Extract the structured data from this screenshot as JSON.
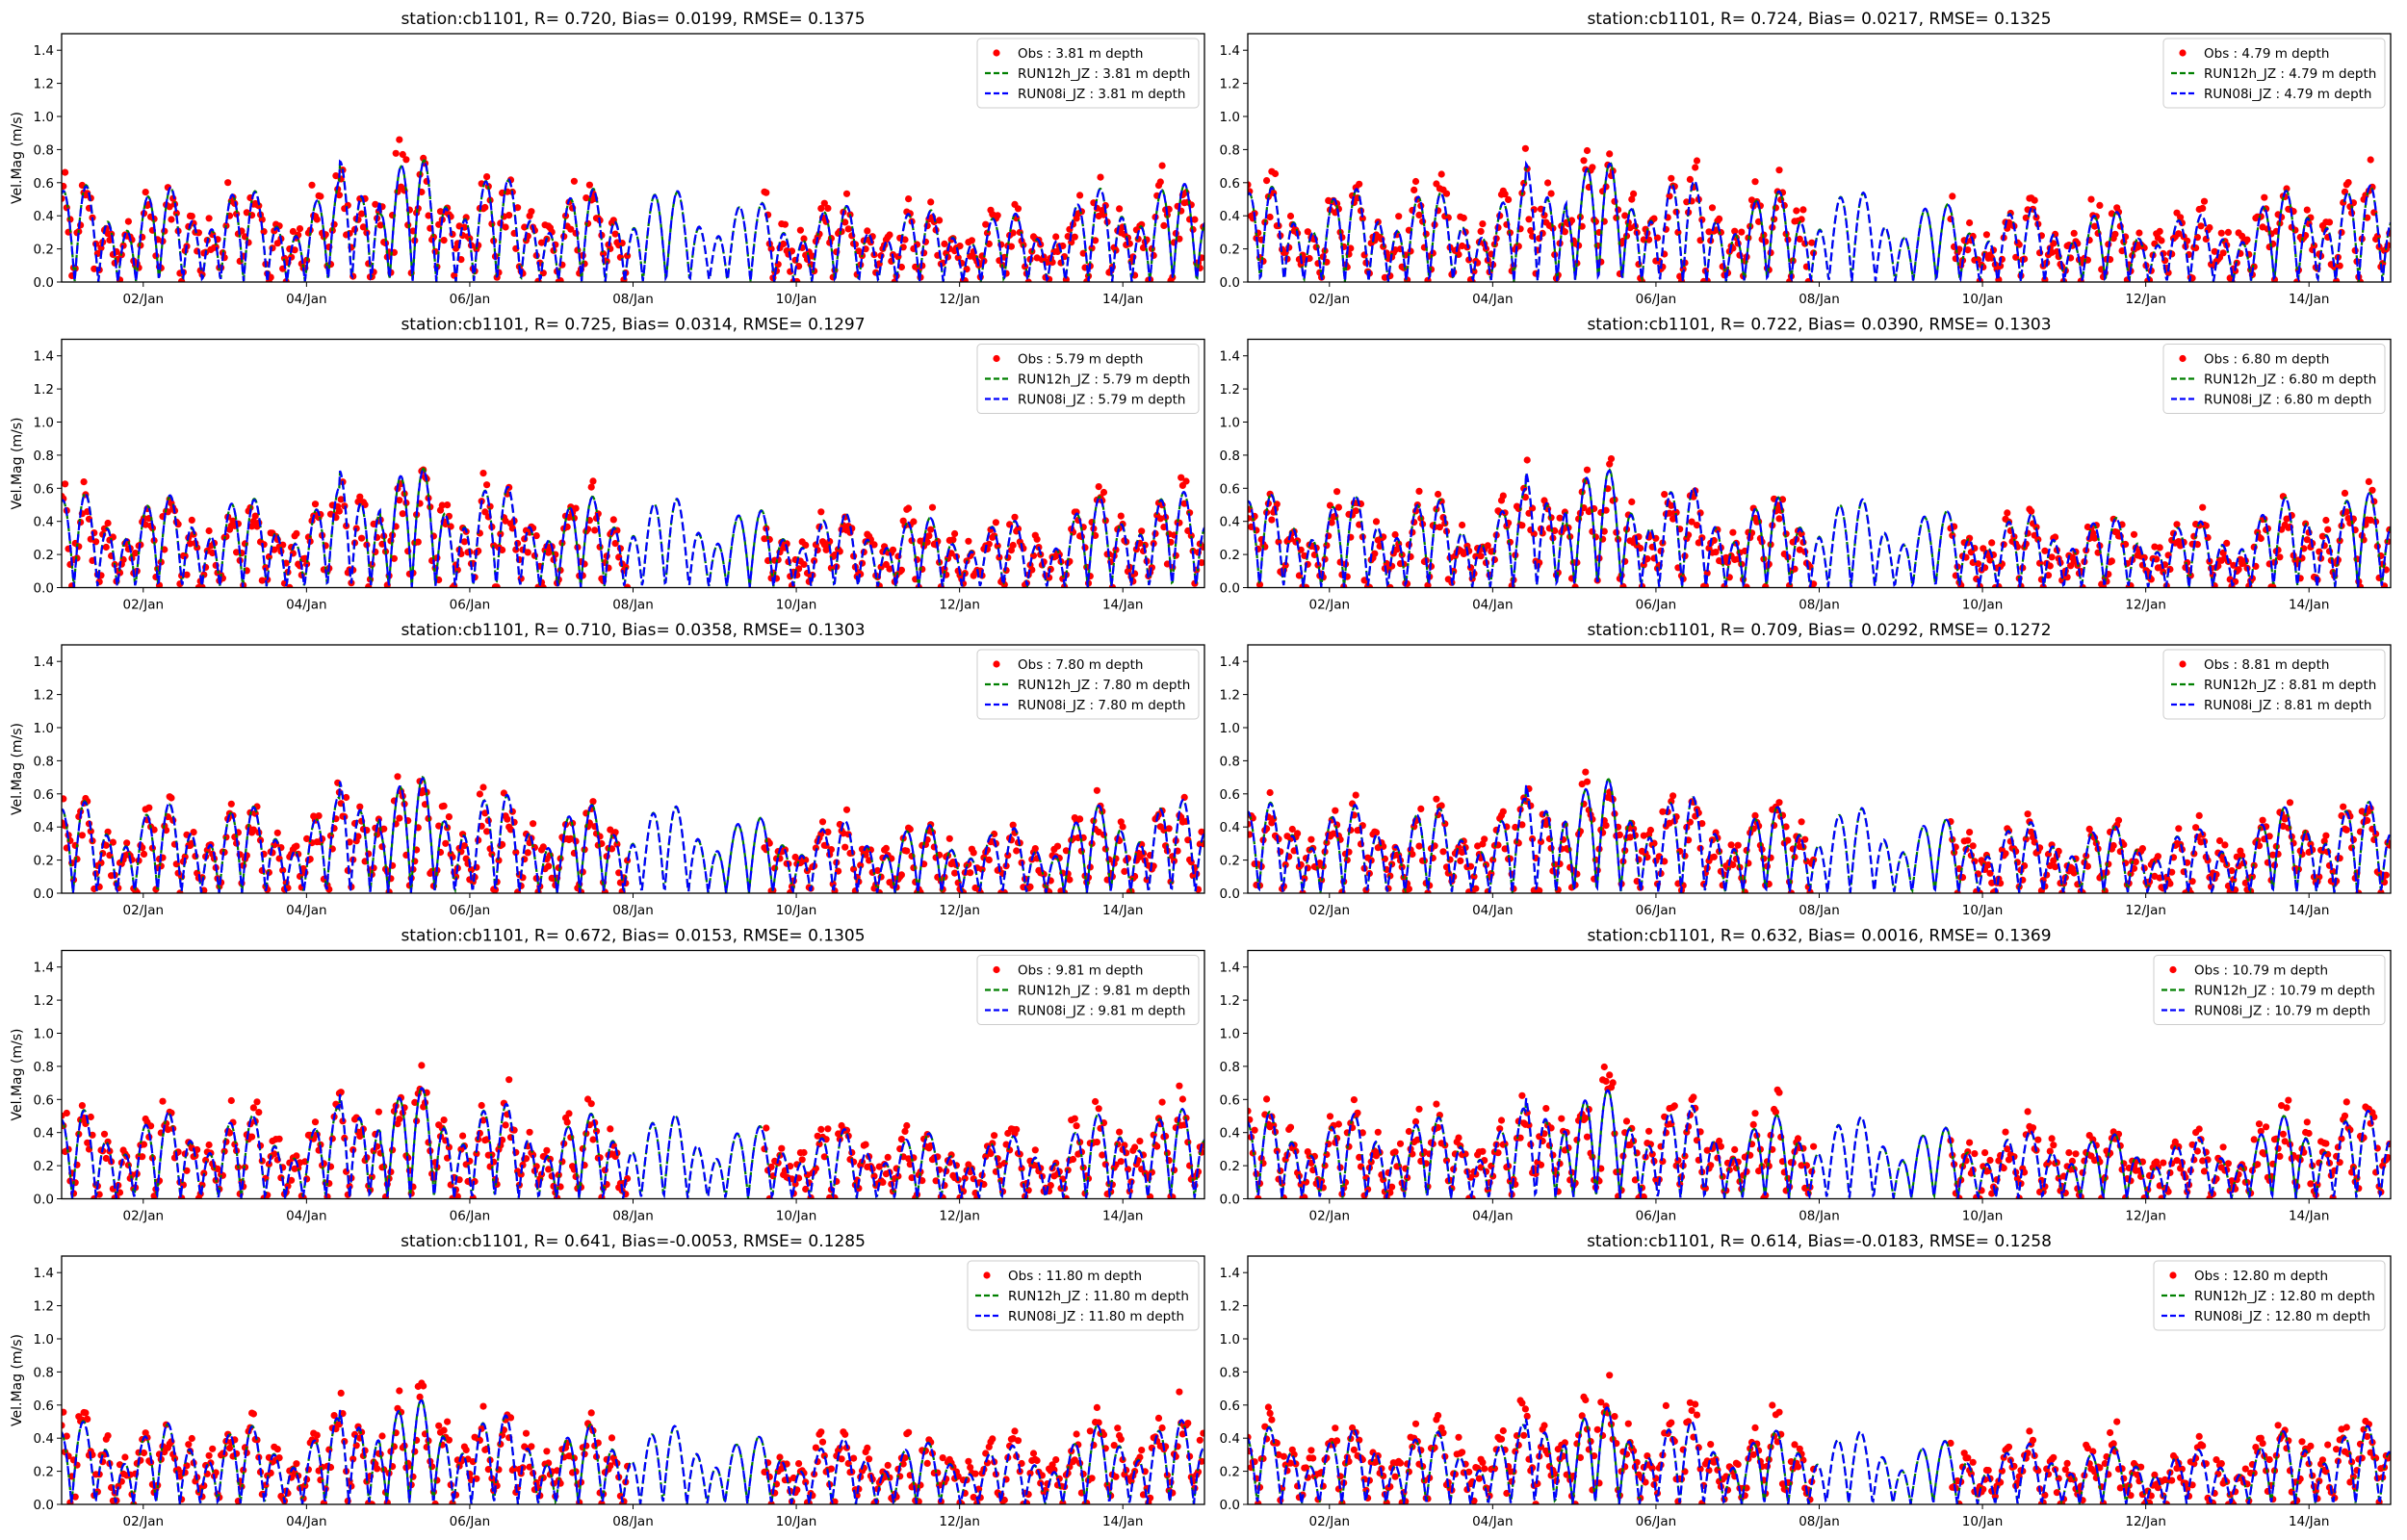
{
  "chart_data": {
    "type": "scatter+line",
    "layout": "5 rows x 2 columns",
    "shared": {
      "ylabel": "Vel.Mag (m/s)",
      "ylim": [
        0,
        1.5
      ],
      "yticks": [
        0.0,
        0.2,
        0.4,
        0.6,
        0.8,
        1.0,
        1.2,
        1.4
      ],
      "ytick_labels": [
        "0.0",
        "0.2",
        "0.4",
        "0.6",
        "0.8",
        "1.0",
        "1.2",
        "1.4"
      ],
      "xlim_days": [
        1.0,
        15.0
      ],
      "xticks_days": [
        2,
        4,
        6,
        8,
        10,
        12,
        14
      ],
      "xtick_labels": [
        "02/Jan",
        "04/Jan",
        "06/Jan",
        "08/Jan",
        "10/Jan",
        "12/Jan",
        "14/Jan"
      ],
      "legend_position": "top-right",
      "colors": {
        "obs": "#ff0000",
        "run12h": "#008000",
        "run08i": "#0000ff"
      },
      "model_daily_envelope": [
        0.62,
        0.58,
        0.6,
        0.52,
        0.8,
        0.72,
        0.55,
        0.62,
        0.52,
        0.48,
        0.47,
        0.44,
        0.42,
        0.65,
        0.6
      ],
      "obs_gap_days": [
        7.95,
        9.6
      ],
      "grid": false
    },
    "panels": [
      {
        "title": "station:cb1101, R= 0.720, Bias= 0.0199, RMSE= 0.1375",
        "depth": "3.81",
        "legend": [
          "Obs : 3.81 m depth",
          "RUN12h_JZ : 3.81 m depth",
          "RUN08i_JZ : 3.81 m depth"
        ],
        "model_scale": 1.0,
        "obs_scale": 1.0
      },
      {
        "title": "station:cb1101, R= 0.724, Bias= 0.0217, RMSE= 0.1325",
        "depth": "4.79",
        "legend": [
          "Obs : 4.79 m depth",
          "RUN12h_JZ : 4.79 m depth",
          "RUN08i_JZ : 4.79 m depth"
        ],
        "model_scale": 0.98,
        "obs_scale": 0.98
      },
      {
        "title": "station:cb1101, R= 0.725, Bias= 0.0314, RMSE= 0.1297",
        "depth": "5.79",
        "legend": [
          "Obs : 5.79 m depth",
          "RUN12h_JZ : 5.79 m depth",
          "RUN08i_JZ : 5.79 m depth"
        ],
        "model_scale": 0.97,
        "obs_scale": 0.93
      },
      {
        "title": "station:cb1101, R= 0.722, Bias= 0.0390, RMSE= 0.1303",
        "depth": "6.80",
        "legend": [
          "Obs : 6.80 m depth",
          "RUN12h_JZ : 6.80 m depth",
          "RUN08i_JZ : 6.80 m depth"
        ],
        "model_scale": 0.96,
        "obs_scale": 0.9
      },
      {
        "title": "station:cb1101, R= 0.710, Bias= 0.0358, RMSE= 0.1303",
        "depth": "7.80",
        "legend": [
          "Obs : 7.80 m depth",
          "RUN12h_JZ : 7.80 m depth",
          "RUN08i_JZ : 7.80 m depth"
        ],
        "model_scale": 0.94,
        "obs_scale": 0.88
      },
      {
        "title": "station:cb1101, R= 0.709, Bias= 0.0292, RMSE= 0.1272",
        "depth": "8.81",
        "legend": [
          "Obs : 8.81 m depth",
          "RUN12h_JZ : 8.81 m depth",
          "RUN08i_JZ : 8.81 m depth"
        ],
        "model_scale": 0.92,
        "obs_scale": 0.88
      },
      {
        "title": "station:cb1101, R= 0.672, Bias= 0.0153, RMSE= 0.1305",
        "depth": "9.81",
        "legend": [
          "Obs : 9.81 m depth",
          "RUN12h_JZ : 9.81 m depth",
          "RUN08i_JZ : 9.81 m depth"
        ],
        "model_scale": 0.9,
        "obs_scale": 0.9
      },
      {
        "title": "station:cb1101, R= 0.632, Bias= 0.0016, RMSE= 0.1369",
        "depth": "10.79",
        "legend": [
          "Obs : 10.79 m depth",
          "RUN12h_JZ : 10.79 m depth",
          "RUN08i_JZ : 10.79 m depth"
        ],
        "model_scale": 0.88,
        "obs_scale": 0.9
      },
      {
        "title": "station:cb1101, R= 0.641, Bias=-0.0053, RMSE= 0.1285",
        "depth": "11.80",
        "legend": [
          "Obs : 11.80 m depth",
          "RUN12h_JZ : 11.80 m depth",
          "RUN08i_JZ : 11.80 m depth"
        ],
        "model_scale": 0.84,
        "obs_scale": 0.88
      },
      {
        "title": "station:cb1101, R= 0.614, Bias=-0.0183, RMSE= 0.1258",
        "depth": "12.80",
        "legend": [
          "Obs : 12.80 m depth",
          "RUN12h_JZ : 12.80 m depth",
          "RUN08i_JZ : 12.80 m depth"
        ],
        "model_scale": 0.78,
        "obs_scale": 0.85
      }
    ]
  }
}
